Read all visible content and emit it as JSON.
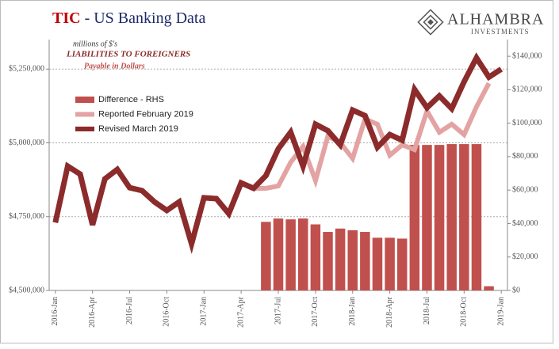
{
  "chart_data": {
    "type": "combo",
    "title": [
      "TIC",
      "- US Banking Data"
    ],
    "annotations": [
      "millions of $'s",
      "LIABILITIES TO FOREIGNERS",
      "Payable in Dollars"
    ],
    "logo": {
      "name": "ALHAMBRA",
      "tagline": "INVESTMENTS"
    },
    "categories": [
      "2016-Jan",
      null,
      null,
      "2016-Apr",
      null,
      null,
      "2016-Jul",
      null,
      null,
      "2016-Oct",
      null,
      null,
      "2017-Jan",
      null,
      null,
      "2017-Apr",
      null,
      null,
      "2017-Jul",
      null,
      null,
      "2017-Oct",
      null,
      null,
      "2018-Jan",
      null,
      null,
      "2018-Apr",
      null,
      null,
      "2018-Jul",
      null,
      null,
      "2018-Oct",
      null,
      null,
      "2019-Jan"
    ],
    "series": [
      {
        "name": "Difference - RHS",
        "type": "bar",
        "axis": "y2",
        "color": "#c0504d",
        "values": [
          null,
          null,
          null,
          null,
          null,
          null,
          null,
          null,
          null,
          null,
          null,
          null,
          null,
          null,
          null,
          null,
          null,
          41000,
          43000,
          42500,
          43000,
          39500,
          35000,
          37000,
          36000,
          35000,
          31500,
          31500,
          31000,
          87000,
          87000,
          87000,
          87500,
          87500,
          87500,
          2500,
          null
        ]
      },
      {
        "name": "Reported February 2019",
        "type": "line",
        "color": "#e3a3a3",
        "values": [
          4730000,
          4921000,
          4894000,
          4722000,
          4878000,
          4910000,
          4848000,
          4838000,
          4800000,
          4771000,
          4800000,
          4658000,
          4814000,
          4811000,
          4760000,
          4864000,
          4846000,
          4846000,
          4854000,
          4934000,
          4988000,
          4872000,
          5023000,
          5001000,
          4947000,
          5081000,
          5063000,
          4958000,
          4993000,
          4977000,
          5108000,
          5036000,
          5063000,
          5028000,
          5122000,
          5202000,
          null
        ]
      },
      {
        "name": "Revised March 2019",
        "type": "line",
        "color": "#8c2b2b",
        "values": [
          4730000,
          4921000,
          4894000,
          4722000,
          4878000,
          4910000,
          4848000,
          4838000,
          4800000,
          4771000,
          4800000,
          4658000,
          4814000,
          4811000,
          4760000,
          4864000,
          4846000,
          4889000,
          4980000,
          5036000,
          4921000,
          5063000,
          5041000,
          4993000,
          5111000,
          5092000,
          4985000,
          5028000,
          5009000,
          5181000,
          5119000,
          5159000,
          5116000,
          5207000,
          5288000,
          5223000,
          5250000
        ]
      }
    ],
    "ylim": [
      4500000,
      5350000
    ],
    "yticks": [
      {
        "value": 4500000,
        "label": "$4,500,000"
      },
      {
        "value": 4750000,
        "label": "$4,750,000"
      },
      {
        "value": 5000000,
        "label": "$5,000,000"
      },
      {
        "value": 5250000,
        "label": "$5,250,000"
      }
    ],
    "y2lim": [
      0,
      150000
    ],
    "y2ticks": [
      {
        "value": 0,
        "label": "$0"
      },
      {
        "value": 20000,
        "label": "$20,000"
      },
      {
        "value": 40000,
        "label": "$40,000"
      },
      {
        "value": 60000,
        "label": "$60,000"
      },
      {
        "value": 80000,
        "label": "$80,000"
      },
      {
        "value": 100000,
        "label": "$100,000"
      },
      {
        "value": 120000,
        "label": "$120,000"
      },
      {
        "value": 140000,
        "label": "$140,000"
      }
    ],
    "grid": true
  }
}
